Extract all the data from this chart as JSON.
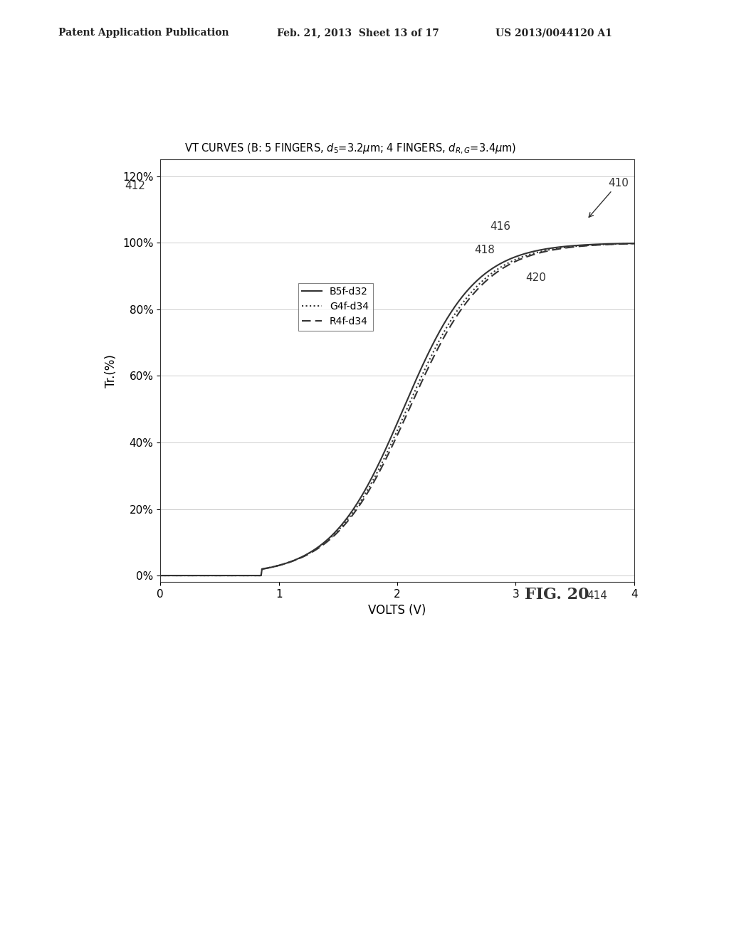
{
  "title_text": "VT CURVES (B: 5 FINGERS, d_5=3.2um; 4 FINGERS, d_RG=3.4um)",
  "xlabel": "VOLTS (V)",
  "ylabel": "Tr.(%)",
  "xlim": [
    0,
    4
  ],
  "ylim": [
    -0.02,
    1.25
  ],
  "yticks": [
    0.0,
    0.2,
    0.4,
    0.6,
    0.8,
    1.0,
    1.2
  ],
  "ytick_labels": [
    "0%",
    "20%",
    "40%",
    "60%",
    "80%",
    "100%",
    "120%"
  ],
  "xticks": [
    0,
    1,
    2,
    3,
    4
  ],
  "background_color": "#ffffff",
  "curve_color": "#333333",
  "legend_labels": [
    "B5f-d32",
    "G4f-d34",
    "R4f-d34"
  ],
  "fig_label": "FIG. 20",
  "patent_header": "Patent Application Publication",
  "patent_date": "Feb. 21, 2013  Sheet 13 of 17",
  "patent_number": "US 2013/0044120 A1"
}
